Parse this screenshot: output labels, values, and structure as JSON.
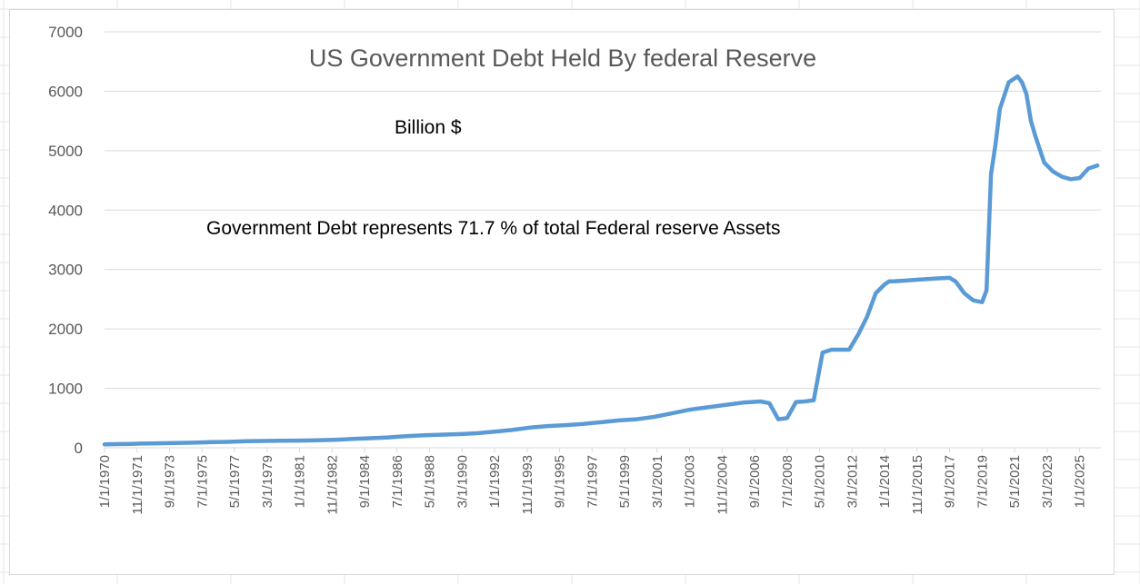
{
  "colors": {
    "line": "#5b9bd5",
    "grid": "#d9d9d9",
    "axis_text": "#595959",
    "sheet_grid": "#e6e6e6"
  },
  "chart_data": {
    "type": "line",
    "title": "US Government Debt Held By federal Reserve",
    "xlabel": "",
    "ylabel": "",
    "ylim": [
      0,
      7000
    ],
    "yticks": [
      0,
      1000,
      2000,
      3000,
      4000,
      5000,
      6000,
      7000
    ],
    "grid": true,
    "legend": "none",
    "annotations": [
      "Billion $",
      "Government Debt represents 71.7 % of total Federal reserve Assets"
    ],
    "x_tick_labels": [
      "1/1/1970",
      "11/1/1971",
      "9/1/1973",
      "7/1/1975",
      "5/1/1977",
      "3/1/1979",
      "1/1/1981",
      "11/1/1982",
      "9/1/1984",
      "7/1/1986",
      "5/1/1988",
      "3/1/1990",
      "1/1/1992",
      "11/1/1993",
      "9/1/1995",
      "7/1/1997",
      "5/1/1999",
      "3/1/2001",
      "1/1/2003",
      "11/1/2004",
      "9/1/2006",
      "7/1/2008",
      "5/1/2010",
      "3/1/2012",
      "1/1/2014",
      "11/1/2015",
      "9/1/2017",
      "7/1/2019",
      "5/1/2021",
      "3/1/2023",
      "1/1/2025"
    ],
    "series": [
      {
        "x": [
          "1/1/1970",
          "1/1/1971",
          "7/1/1971",
          "1/1/1972",
          "1/1/1973",
          "1/1/1974",
          "1/1/1975",
          "7/1/1975",
          "1/1/1976",
          "1/1/1977",
          "1/1/1978",
          "1/1/1979",
          "1/1/1980",
          "1/1/1981",
          "1/1/1982",
          "7/1/1982",
          "1/1/1983",
          "1/1/1984",
          "1/1/1985",
          "1/1/1986",
          "1/1/1987",
          "1/1/1988",
          "1/1/1989",
          "7/1/1989",
          "1/1/1990",
          "1/1/1991",
          "1/1/1992",
          "1/1/1993",
          "1/1/1994",
          "1/1/1995",
          "1/1/1996",
          "1/1/1997",
          "1/1/1998",
          "1/1/1999",
          "1/1/2000",
          "7/1/2000",
          "1/1/2001",
          "1/1/2002",
          "1/1/2003",
          "1/1/2004",
          "1/1/2005",
          "1/1/2006",
          "1/1/2007",
          "7/1/2007",
          "1/1/2008",
          "7/1/2008",
          "1/1/2009",
          "7/1/2009",
          "1/1/2010",
          "7/1/2010",
          "1/1/2011",
          "7/1/2011",
          "1/1/2012",
          "7/1/2012",
          "1/1/2013",
          "7/1/2013",
          "1/1/2014",
          "4/1/2014",
          "7/1/2014",
          "1/1/2015",
          "1/1/2016",
          "1/1/2017",
          "9/1/2017",
          "1/1/2018",
          "7/1/2018",
          "1/1/2019",
          "7/1/2019",
          "10/1/2019",
          "1/1/2020",
          "4/1/2020",
          "7/1/2020",
          "1/1/2021",
          "7/1/2021",
          "10/1/2021",
          "1/1/2022",
          "4/1/2022",
          "7/1/2022",
          "1/1/2023",
          "7/1/2023",
          "1/1/2024",
          "7/1/2024",
          "1/1/2025",
          "7/1/2025",
          "1/1/2026"
        ],
        "values": [
          57,
          62,
          65,
          71,
          75,
          80,
          85,
          90,
          95,
          100,
          110,
          115,
          118,
          120,
          125,
          130,
          135,
          148,
          160,
          175,
          195,
          210,
          220,
          225,
          230,
          245,
          270,
          300,
          340,
          365,
          380,
          400,
          430,
          460,
          480,
          500,
          520,
          580,
          640,
          680,
          720,
          760,
          780,
          750,
          480,
          500,
          770,
          780,
          800,
          1600,
          1650,
          1650,
          1650,
          1900,
          2200,
          2600,
          2750,
          2800,
          2800,
          2810,
          2830,
          2850,
          2860,
          2800,
          2600,
          2480,
          2450,
          2650,
          4600,
          5100,
          5700,
          6150,
          6250,
          6150,
          5950,
          5500,
          5250,
          4800,
          4650,
          4560,
          4520,
          4540,
          4700,
          4750
        ]
      }
    ]
  }
}
